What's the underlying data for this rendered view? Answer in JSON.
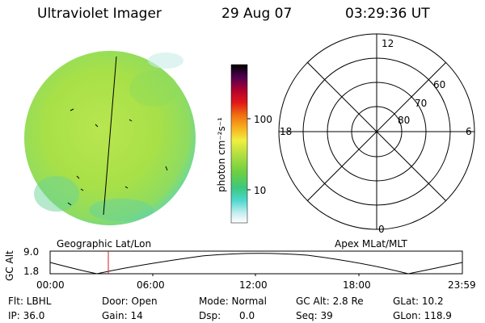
{
  "header": {
    "instrument": "Ultraviolet Imager",
    "date": "29 Aug 07",
    "time": "03:29:36 UT"
  },
  "colorbar": {
    "unit_label": "photon cm⁻²s⁻¹",
    "tick_labels": [
      "100",
      "10"
    ],
    "scale": "log"
  },
  "polar": {
    "mlt_labels": [
      "12",
      "18",
      "6",
      "0"
    ],
    "lat_labels": [
      "60",
      "70",
      "80"
    ]
  },
  "timeline": {
    "left_title": "Geographic Lat/Lon",
    "right_title": "Apex MLat/MLT",
    "y_label": "GC Alt",
    "y_ticks": [
      "9.0",
      "1.8"
    ],
    "x_ticks": [
      "00:00",
      "06:00",
      "12:00",
      "18:00",
      "23:59"
    ],
    "current_time_marker": "03:29"
  },
  "footer": {
    "row1": {
      "flt": "Flt: LBHL",
      "door": "Door: Open",
      "mode": "Mode: Normal",
      "gc_alt": "GC Alt: 2.8 Re",
      "glat": "GLat:  10.2"
    },
    "row2": {
      "ip": "IP: 36.0",
      "gain": "Gain: 14",
      "dsp": "Dsp:      0.0",
      "seq": "Seq: 39",
      "glon": "GLon: 118.9"
    }
  },
  "colors": {
    "disk_base": "#a8e048",
    "disk_edge": "#5fd6b8",
    "marker": "#d02020"
  }
}
